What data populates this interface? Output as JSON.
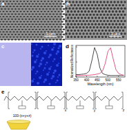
{
  "panels": {
    "a": {
      "label": "a",
      "scale_bar": "1 μm"
    },
    "b": {
      "label": "b",
      "scale_bar": "1 μm"
    },
    "c": {
      "label": "c"
    },
    "d": {
      "label": "d"
    },
    "e": {
      "label": "e",
      "subscripts": [
        "100-(x+y+z)",
        "x",
        "y",
        "z"
      ]
    }
  },
  "chart_data": {
    "type": "line",
    "x_label": "Wavelength (nm)",
    "y_label": "Normalized Reflectance",
    "x": [
      350,
      362.5,
      375,
      387.5,
      400,
      412.5,
      425,
      437.5,
      450,
      462.5,
      475,
      487.5,
      500,
      512.5,
      525,
      537.5,
      550,
      562.5,
      575
    ],
    "xlim": [
      350,
      580
    ],
    "xticks": [
      350,
      400,
      450,
      500,
      550
    ],
    "ylim": [
      0,
      1.05
    ],
    "yticks": [
      0,
      0.5,
      1
    ],
    "tick_labels": "x",
    "series": [
      {
        "color": "#333333",
        "values": [
          0.08,
          0.08,
          0.09,
          0.1,
          0.12,
          0.2,
          0.55,
          0.98,
          0.75,
          0.3,
          0.12,
          0.08,
          0.06,
          0.05,
          0.05,
          0.05,
          0.05,
          0.05,
          0.05
        ]
      },
      {
        "color": "#e0407a",
        "values": [
          0.05,
          0.05,
          0.05,
          0.05,
          0.06,
          0.06,
          0.07,
          0.08,
          0.1,
          0.12,
          0.2,
          0.45,
          0.85,
          0.97,
          0.6,
          0.25,
          0.12,
          0.08,
          0.06
        ]
      }
    ]
  }
}
